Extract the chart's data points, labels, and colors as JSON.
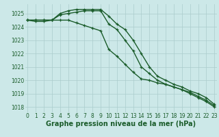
{
  "xlabel": "Graphe pression niveau de la mer (hPa)",
  "ylabel": "",
  "background_color": "#cce8e8",
  "grid_color": "#aacccc",
  "line_color": "#1a5c2a",
  "x_ticks": [
    0,
    1,
    2,
    3,
    4,
    5,
    6,
    7,
    8,
    9,
    10,
    11,
    12,
    13,
    14,
    15,
    16,
    17,
    18,
    19,
    20,
    21,
    22,
    23
  ],
  "y_ticks": [
    1018,
    1019,
    1020,
    1021,
    1022,
    1023,
    1024,
    1025
  ],
  "ylim": [
    1017.6,
    1025.7
  ],
  "xlim": [
    -0.3,
    23.3
  ],
  "series": [
    [
      1024.5,
      1024.5,
      1024.5,
      1024.5,
      1025.0,
      1025.2,
      1025.3,
      1025.3,
      1025.3,
      1025.3,
      1024.8,
      1024.2,
      1023.8,
      1023.0,
      1022.0,
      1021.0,
      1020.3,
      1020.0,
      1019.7,
      1019.5,
      1019.2,
      1019.0,
      1018.7,
      1018.2
    ],
    [
      1024.5,
      1024.5,
      1024.5,
      1024.5,
      1024.9,
      1025.0,
      1025.1,
      1025.2,
      1025.2,
      1025.2,
      1024.2,
      1023.8,
      1023.0,
      1022.2,
      1021.0,
      1020.5,
      1020.0,
      1019.7,
      1019.5,
      1019.3,
      1019.1,
      1018.8,
      1018.5,
      1018.1
    ],
    [
      1024.5,
      1024.4,
      1024.4,
      1024.5,
      1024.5,
      1024.5,
      1024.3,
      1024.1,
      1023.9,
      1023.7,
      1022.3,
      1021.8,
      1021.2,
      1020.6,
      1020.1,
      1020.0,
      1019.8,
      1019.7,
      1019.5,
      1019.3,
      1019.0,
      1018.7,
      1018.4,
      1018.0
    ]
  ],
  "marker": "+",
  "markersize": 3,
  "linewidth": 1.0,
  "tick_fontsize": 5.5,
  "xlabel_fontsize": 7.0,
  "xlabel_fontweight": "bold"
}
